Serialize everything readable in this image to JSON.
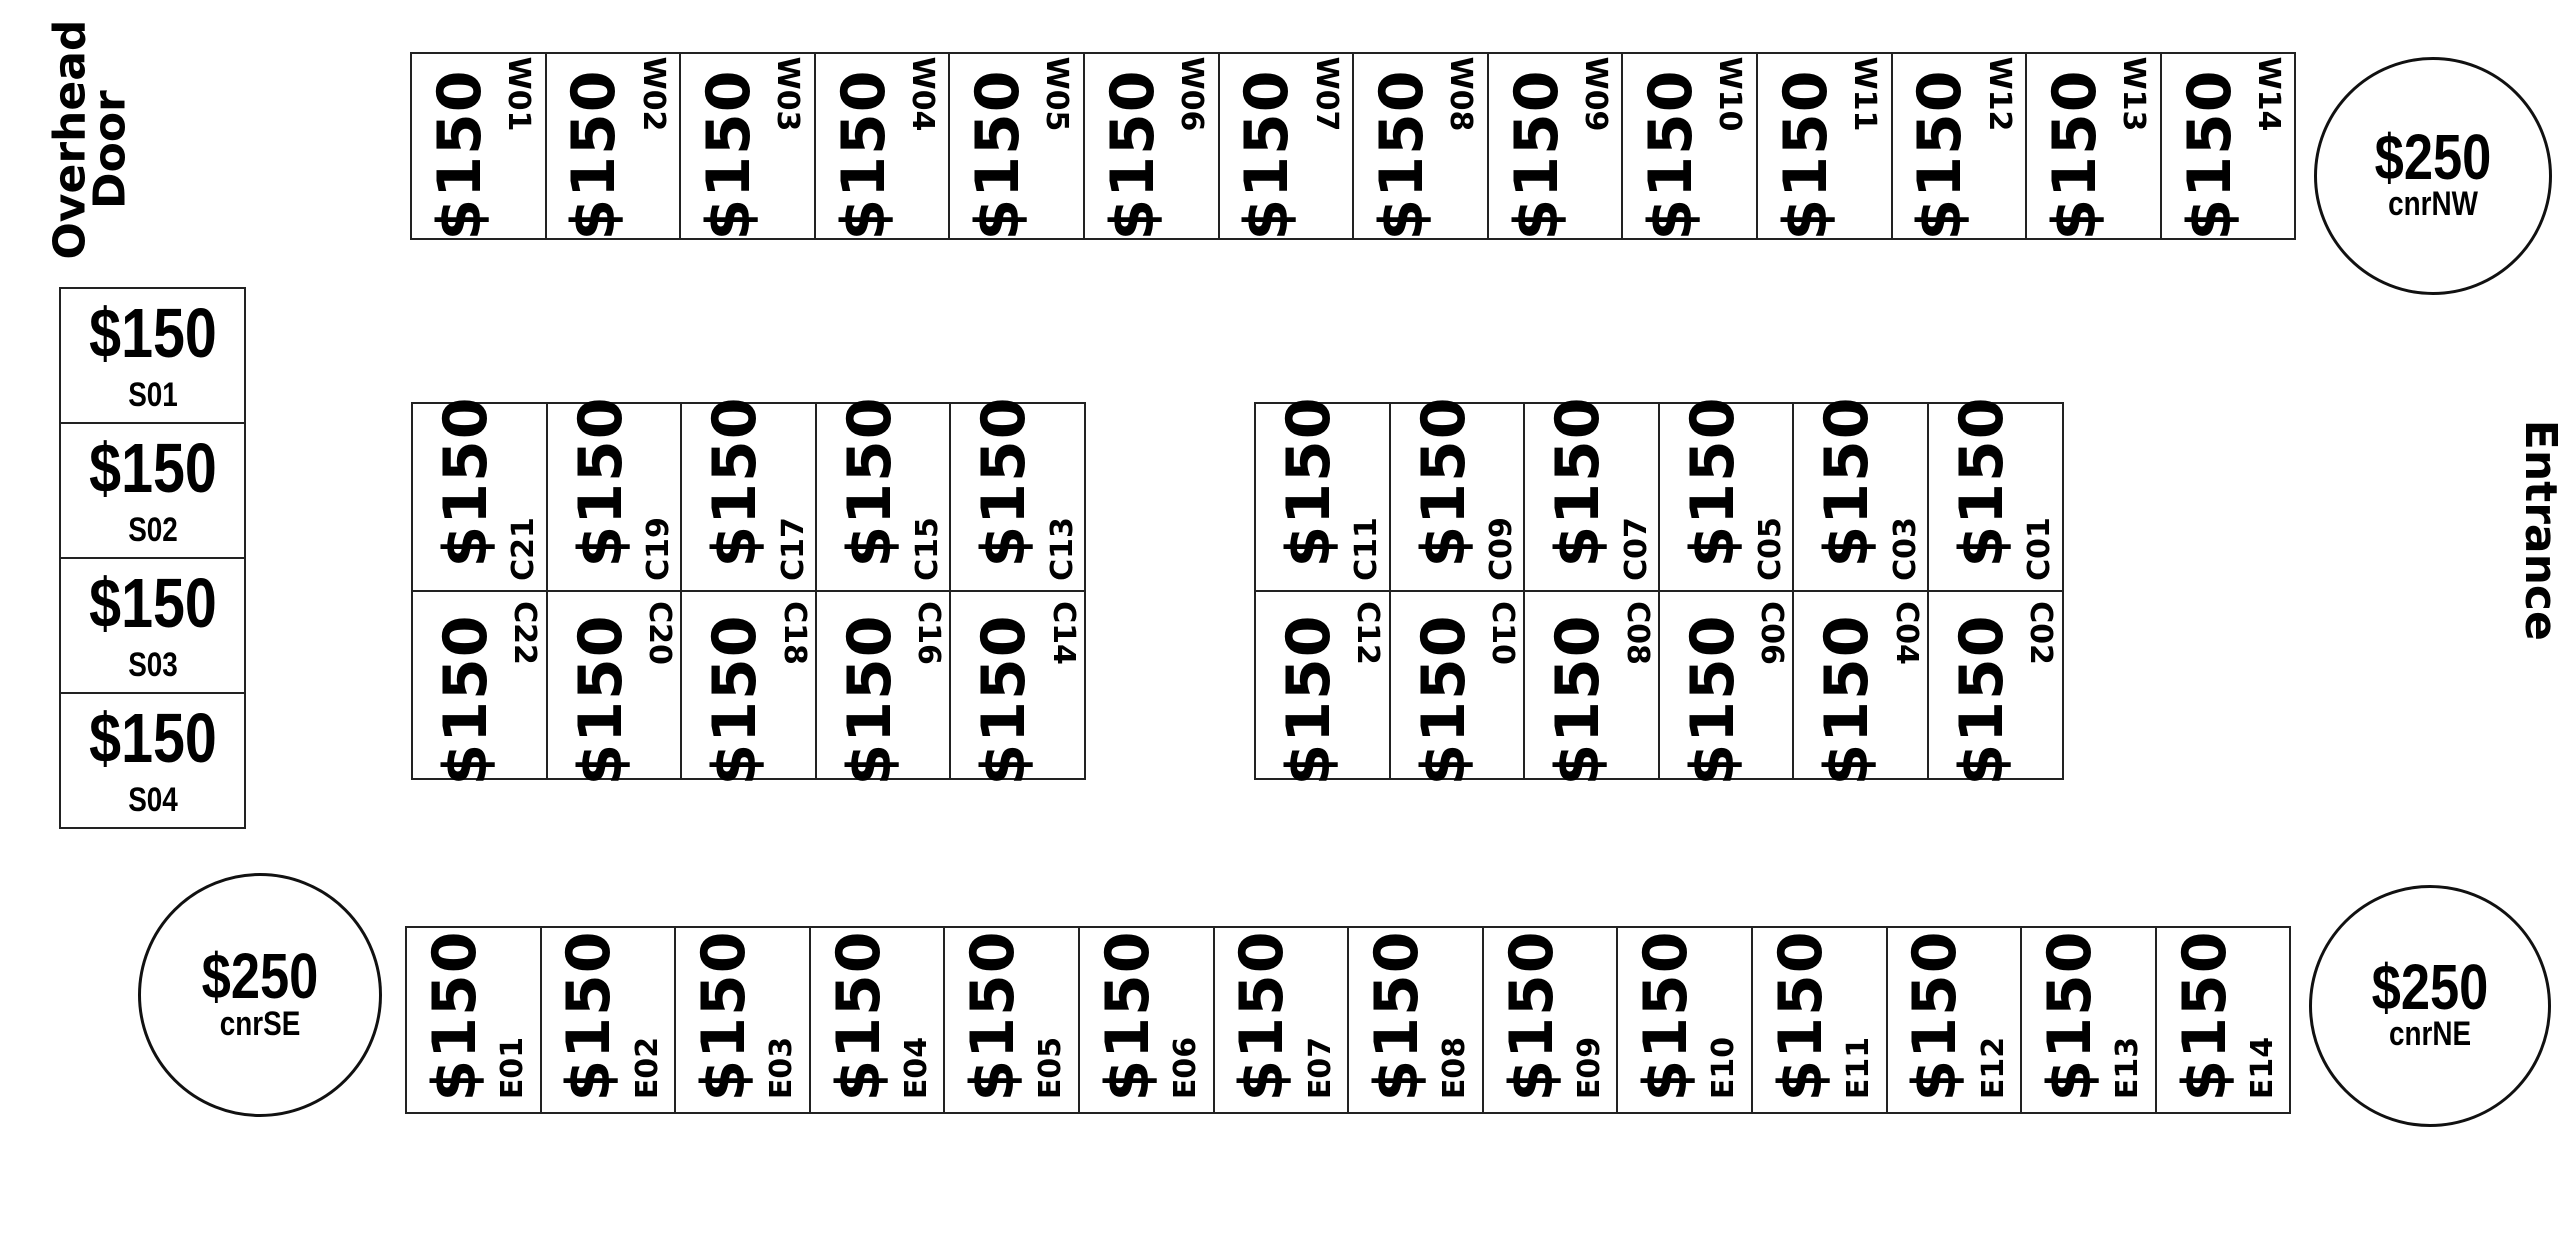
{
  "labels": {
    "overhead_door_line1": "Overhead",
    "overhead_door_line2": "Door",
    "entrance": "Entrance"
  },
  "booth_price": "$150",
  "corner_price": "$250",
  "west_row": [
    "W01",
    "W02",
    "W03",
    "W04",
    "W05",
    "W06",
    "W07",
    "W08",
    "W09",
    "W10",
    "W11",
    "W12",
    "W13",
    "W14"
  ],
  "south_column": [
    "S01",
    "S02",
    "S03",
    "S04"
  ],
  "center_left": {
    "top": [
      "C21",
      "C19",
      "C17",
      "C15",
      "C13"
    ],
    "bottom": [
      "C22",
      "C20",
      "C18",
      "C16",
      "C14"
    ]
  },
  "center_right": {
    "top": [
      "C11",
      "C09",
      "C07",
      "C05",
      "C03",
      "C01"
    ],
    "bottom": [
      "C12",
      "C10",
      "C08",
      "C06",
      "C04",
      "C02"
    ]
  },
  "east_row": [
    "E01",
    "E02",
    "E03",
    "E04",
    "E05",
    "E06",
    "E07",
    "E08",
    "E09",
    "E10",
    "E11",
    "E12",
    "E13",
    "E14"
  ],
  "corners": [
    {
      "id": "cnrNW",
      "price": "$250"
    },
    {
      "id": "cnrSE",
      "price": "$250"
    },
    {
      "id": "cnrNE",
      "price": "$250"
    }
  ]
}
